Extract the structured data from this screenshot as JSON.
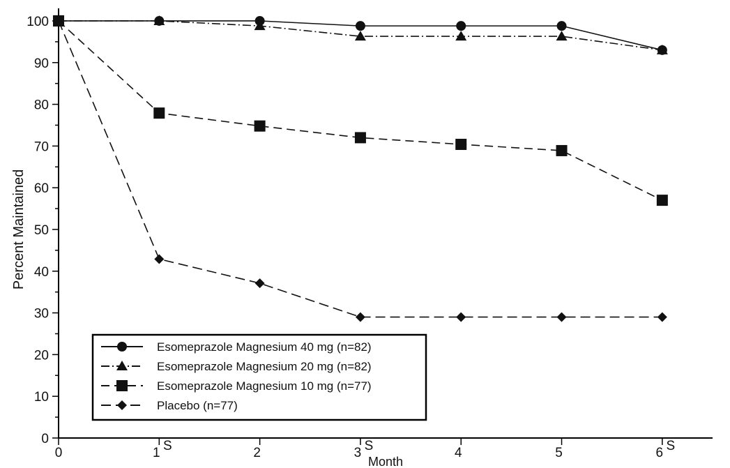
{
  "chart_data": {
    "type": "line",
    "title": "",
    "xlabel": "Month",
    "ylabel": "Percent Maintained",
    "x": [
      0,
      1,
      2,
      3,
      4,
      5,
      6
    ],
    "x_tick_labels": [
      "0",
      "1",
      "2",
      "3",
      "4",
      "5",
      "6"
    ],
    "y_ticks": [
      0,
      10,
      20,
      30,
      40,
      50,
      60,
      70,
      80,
      90,
      100
    ],
    "y_tick_labels": [
      "0",
      "10",
      "20",
      "30",
      "40",
      "50",
      "60",
      "70",
      "80",
      "90",
      "100"
    ],
    "xlim": [
      0,
      6.5
    ],
    "ylim": [
      0,
      102
    ],
    "grid": false,
    "legend_position": "bottom-left",
    "significance_marker": "S",
    "significance_months": [
      1,
      3,
      6
    ],
    "series": [
      {
        "name": "Esomeprazole Magnesium 40 mg (n=82)",
        "values": [
          100,
          100,
          100,
          98.8,
          98.8,
          98.8,
          93
        ],
        "marker": "circle",
        "dash": "solid"
      },
      {
        "name": "Esomeprazole Magnesium 20 mg (n=82)",
        "values": [
          100,
          100,
          98.8,
          96.3,
          96.3,
          96.3,
          93
        ],
        "marker": "triangle",
        "dash": "dashdot"
      },
      {
        "name": "Esomeprazole Magnesium 10 mg (n=77)",
        "values": [
          100,
          77.9,
          74.8,
          72,
          70.4,
          68.9,
          57
        ],
        "marker": "square",
        "dash": "dashed"
      },
      {
        "name": "Placebo (n=77)",
        "values": [
          100,
          42.9,
          37.1,
          29,
          29,
          29,
          29
        ],
        "marker": "diamond",
        "dash": "longdash"
      }
    ]
  }
}
